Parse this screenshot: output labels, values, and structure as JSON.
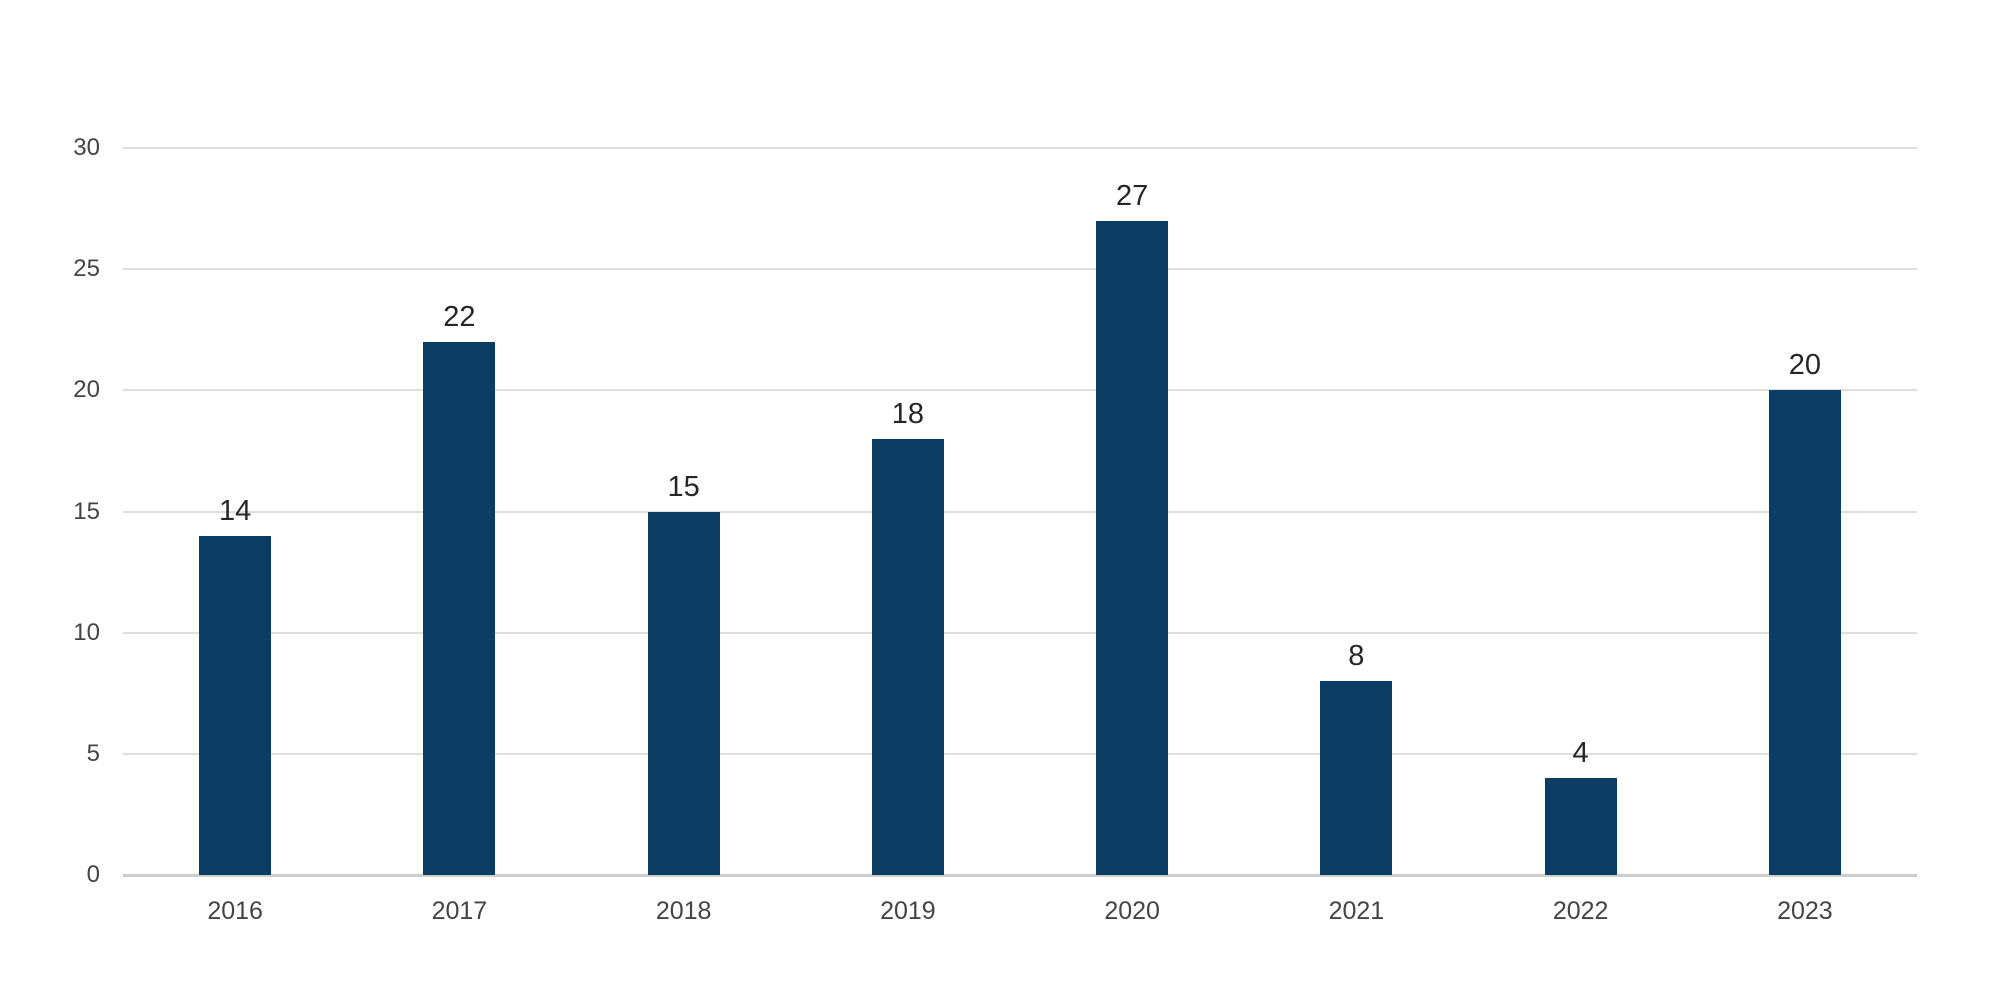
{
  "chart_data": {
    "type": "bar",
    "title": "",
    "categories": [
      "2016",
      "2017",
      "2018",
      "2019",
      "2020",
      "2021",
      "2022",
      "2023"
    ],
    "values": [
      14,
      22,
      15,
      18,
      27,
      8,
      4,
      20
    ],
    "data_labels": [
      "14",
      "22",
      "15",
      "18",
      "27",
      "8",
      "4",
      "20"
    ],
    "xlabel": "",
    "ylabel": "",
    "ylim": [
      0,
      30
    ],
    "ytick_interval": 5,
    "ytick_labels": [
      "0",
      "5",
      "10",
      "15",
      "20",
      "25",
      "30"
    ],
    "grid": "horizontal-only",
    "legend_position": "none",
    "colors": {
      "bar_fill": "#0c3d64",
      "gridline": "#dedede",
      "axis_line": "#cdcdcd",
      "value_label_text": "#262626",
      "tick_label_text": "#444444",
      "background": "#ffffff"
    }
  }
}
